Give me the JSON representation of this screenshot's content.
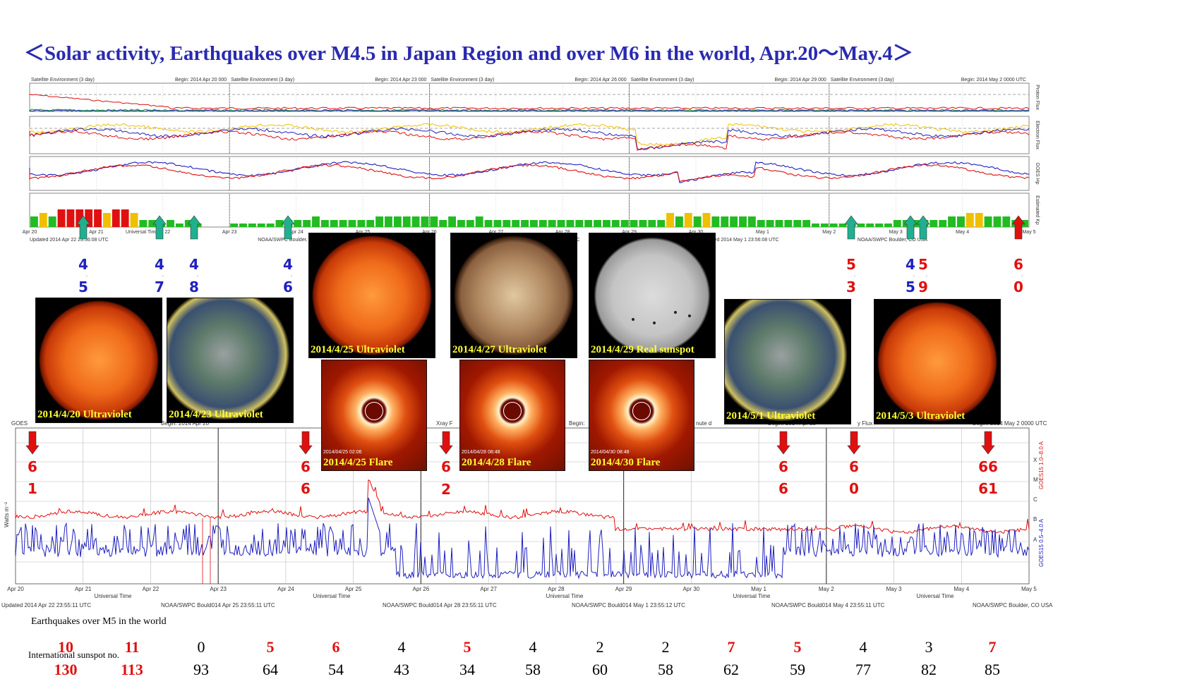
{
  "title": "＜Solar activity, Earthquakes over M4.5 in Japan Region and over M6 in the world, Apr.20〜May.4＞",
  "colors": {
    "title": "#2a2ab0",
    "red": "#e01010",
    "blue": "#2020c0",
    "green": "#22bb22",
    "yellow": "#f0c000",
    "teal": "#20b090"
  },
  "env_headers": [
    {
      "left": "Satellite Environment (3 day)",
      "right": "Begin:  2014 Apr 20 000"
    },
    {
      "left": "Satellite Environment (3 day)",
      "right": "Begin:  2014 Apr 23 000"
    },
    {
      "left": "Satellite Environment (3 day)",
      "right": "Begin:  2014 Apr 26 000"
    },
    {
      "left": "Satellite Environment (3 day)",
      "right": "Begin:  2014 Apr 29 000"
    },
    {
      "left": "Satellite Environment (3 day)",
      "right": "Begin:  2014 May 2 0000 UTC"
    }
  ],
  "env_side_labels": [
    "Proton Flux",
    "Electron Flux",
    "GOES Hp",
    "Estimated Kp"
  ],
  "env_day_labels": [
    "Apr 20",
    "Apr 21",
    "Apr 22",
    "Apr 23",
    "Apr 24",
    "Apr 25",
    "Apr 26",
    "Apr 27",
    "Apr 28",
    "Apr 29",
    "Apr 30",
    "May 1",
    "May 2",
    "May 3",
    "May 4",
    "May 5"
  ],
  "env_footer": [
    "Updated 2014 Apr 22 23:56:08 UTC",
    "NOAA/SWPC Boulder, Ored 2014 Apr 25 23:56:06 UTC",
    "NOAA/SWPC Boulder, Ored 2014 Apr 28 23:56:08 UTC",
    "NOAA/SWPC Boulder, Ored 2014 May 1 23:56:08 UTC",
    "NOAA/SWPC Boulder, CO USA"
  ],
  "universal_time": "Universal Time",
  "kp_values": [
    3,
    4,
    3,
    5,
    5,
    5,
    5,
    5,
    4,
    5,
    5,
    4,
    2,
    2,
    1,
    2,
    1,
    2,
    1,
    0,
    0,
    0,
    1,
    1,
    1,
    1,
    1,
    2,
    2,
    2,
    2,
    3,
    2,
    2,
    2,
    2,
    2,
    2,
    3,
    3,
    3,
    3,
    3,
    3,
    3,
    2,
    3,
    2,
    2,
    3,
    2,
    2,
    2,
    2,
    2,
    2,
    2,
    2,
    2,
    2,
    2,
    2,
    2,
    2,
    2,
    2,
    2,
    2,
    2,
    2,
    4,
    3,
    4,
    3,
    4,
    3,
    3,
    3,
    3,
    3,
    2,
    2,
    2,
    2,
    2,
    2,
    1,
    1,
    1,
    1,
    1,
    1,
    1,
    1,
    1,
    2,
    2,
    2,
    2,
    2,
    2,
    3,
    3,
    4,
    4,
    3,
    3,
    3,
    2,
    2
  ],
  "japan_eq_markers": [
    {
      "digits": [
        "4",
        "5"
      ],
      "sub": "."
    },
    {
      "digits": [
        "4",
        "7"
      ],
      "sub": "."
    },
    {
      "digits": [
        "4",
        "8"
      ],
      "sub": "."
    },
    {
      "digits": [
        "4",
        "6"
      ],
      "sub": "."
    },
    {
      "digits": [
        "5",
        "3"
      ],
      "sub": "."
    },
    {
      "digits": [
        "4",
        "5"
      ],
      "sub": "."
    },
    {
      "digits": [
        "5",
        "9"
      ],
      "sub": "."
    }
  ],
  "world_eq_top": {
    "digits": [
      "6",
      "0"
    ],
    "sub": "."
  },
  "sun_images": [
    {
      "caption": "2014/4/20 Ultraviolet",
      "kind": "uv-red"
    },
    {
      "caption": "2014/4/23 Ultraviolet",
      "kind": "uv-green"
    },
    {
      "caption": "2014/4/25 Ultraviolet",
      "kind": "uv-red"
    },
    {
      "caption": "2014/4/27 Ultraviolet",
      "kind": "uv-gold"
    },
    {
      "caption": "2014/4/29 Real sunspot",
      "kind": "white"
    },
    {
      "caption": "2014/5/1 Ultraviolet",
      "kind": "uv-green"
    },
    {
      "caption": "2014/5/3 Ultraviolet",
      "kind": "uv-red"
    }
  ],
  "flare_images": [
    {
      "caption": "2014/4/25  Flare",
      "stamp": "2014/04/25 02:06"
    },
    {
      "caption": "2014/4/28  Flare",
      "stamp": "2014/04/28 08:48"
    },
    {
      "caption": "2014/4/30 Flare",
      "stamp": "2014/04/30 08:48"
    }
  ],
  "xray_header_fragments": [
    "GOES",
    "Begin: 2014 Apr 20",
    "Xray F",
    "Begin:",
    "nute d",
    "Begin: 2014 Apr 29",
    "y Flux",
    "Begin: 2014 May 2 0000 UTC"
  ],
  "xray_side_labels": [
    "Watts m⁻²",
    "GOES15 1.0–8.0 A",
    "GOES15 0.5–4.0 A"
  ],
  "xray_class_labels": [
    "X",
    "M",
    "C",
    "B",
    "A"
  ],
  "xray_footer": [
    "Updated 2014 Apr 22 23:55:11 UTC",
    "NOAA/SWPC Bould014 Apr 25 23:55:11 UTC",
    "NOAA/SWPC Bould014 Apr 28 23:55:11 UTC",
    "NOAA/SWPC Bould014 May  1 23:55:12 UTC",
    "NOAA/SWPC Bould014 May  4 23:55:11 UTC",
    "NOAA/SWPC Boulder, CO USA"
  ],
  "world_eq_markers": [
    {
      "digits": [
        "6",
        "1"
      ]
    },
    {
      "digits": [
        "6",
        "6"
      ]
    },
    {
      "digits": [
        "6",
        "2"
      ]
    },
    {
      "digits": [
        "6",
        "6"
      ]
    },
    {
      "digits": [
        "6",
        "0"
      ]
    },
    {
      "digits": [
        "66",
        "61"
      ]
    }
  ],
  "eq_world_label": "Earthquakes over M5 in the world",
  "sunspot_label": "International sunspot no.",
  "chart_data": {
    "type": "table",
    "title": "Earthquakes over M5 in the world / International sunspot no.",
    "earthquake_counts": [
      10,
      11,
      0,
      5,
      6,
      4,
      5,
      4,
      2,
      2,
      7,
      5,
      4,
      3,
      7
    ],
    "earthquake_highlight": [
      true,
      true,
      false,
      true,
      true,
      false,
      true,
      false,
      false,
      false,
      true,
      true,
      false,
      false,
      true
    ],
    "sunspot_numbers": [
      130,
      113,
      93,
      64,
      54,
      43,
      34,
      58,
      60,
      58,
      62,
      59,
      77,
      82,
      85
    ],
    "sunspot_highlight": [
      true,
      true,
      false,
      false,
      false,
      false,
      false,
      false,
      false,
      false,
      false,
      false,
      false,
      false,
      false
    ]
  }
}
